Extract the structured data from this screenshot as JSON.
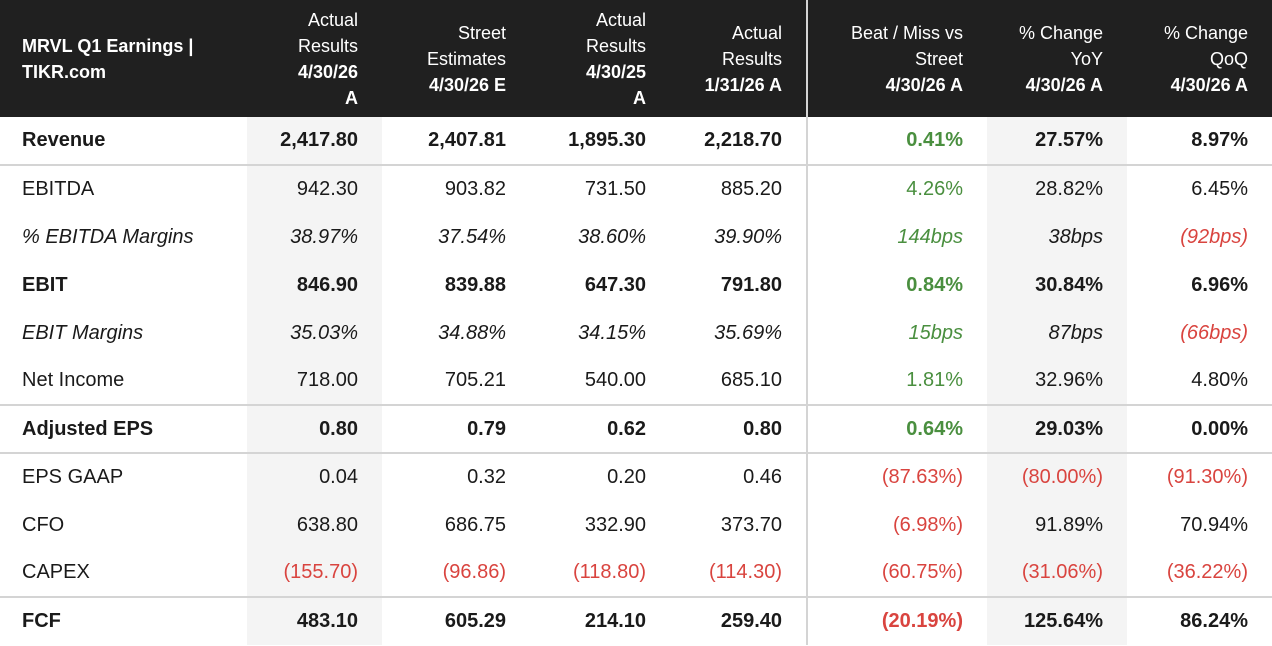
{
  "chart_data": {
    "type": "table",
    "title": "MRVL Q1 Earnings | TIKR.com",
    "columns": [
      {
        "line1": "Actual",
        "line2": "Results",
        "bold": "4/30/26\nA"
      },
      {
        "line1": "Street",
        "line2": "Estimates",
        "bold": "4/30/26 E"
      },
      {
        "line1": "Actual",
        "line2": "Results",
        "bold": "4/30/25\nA"
      },
      {
        "line1": "Actual",
        "line2": "Results",
        "bold": "1/31/26 A"
      },
      {
        "line1": "Beat / Miss vs",
        "line2": "Street",
        "bold": "4/30/26 A"
      },
      {
        "line1": "% Change",
        "line2": "YoY",
        "bold": "4/30/26 A"
      },
      {
        "line1": "% Change",
        "line2": "QoQ",
        "bold": "4/30/26 A"
      }
    ],
    "rows": [
      {
        "label": "Revenue",
        "style": "bold",
        "cells": [
          "2,417.80",
          "2,407.81",
          "1,895.30",
          "2,218.70",
          "0.41%",
          "27.57%",
          "8.97%"
        ],
        "colors": [
          "",
          "",
          "",
          "",
          "green",
          "",
          ""
        ]
      },
      {
        "label": "EBITDA",
        "style": "normal",
        "cells": [
          "942.30",
          "903.82",
          "731.50",
          "885.20",
          "4.26%",
          "28.82%",
          "6.45%"
        ],
        "colors": [
          "",
          "",
          "",
          "",
          "green",
          "",
          ""
        ]
      },
      {
        "label": "% EBITDA Margins",
        "style": "italic",
        "cells": [
          "38.97%",
          "37.54%",
          "38.60%",
          "39.90%",
          "144bps",
          "38bps",
          "(92bps)"
        ],
        "colors": [
          "",
          "",
          "",
          "",
          "green",
          "",
          "red"
        ]
      },
      {
        "label": "EBIT",
        "style": "bold",
        "cells": [
          "846.90",
          "839.88",
          "647.30",
          "791.80",
          "0.84%",
          "30.84%",
          "6.96%"
        ],
        "colors": [
          "",
          "",
          "",
          "",
          "green",
          "",
          ""
        ]
      },
      {
        "label": "EBIT Margins",
        "style": "italic",
        "cells": [
          "35.03%",
          "34.88%",
          "34.15%",
          "35.69%",
          "15bps",
          "87bps",
          "(66bps)"
        ],
        "colors": [
          "",
          "",
          "",
          "",
          "green",
          "",
          "red"
        ]
      },
      {
        "label": "Net Income",
        "style": "normal",
        "cells": [
          "718.00",
          "705.21",
          "540.00",
          "685.10",
          "1.81%",
          "32.96%",
          "4.80%"
        ],
        "colors": [
          "",
          "",
          "",
          "",
          "green",
          "",
          ""
        ]
      },
      {
        "label": "Adjusted EPS",
        "style": "bold",
        "cells": [
          "0.80",
          "0.79",
          "0.62",
          "0.80",
          "0.64%",
          "29.03%",
          "0.00%"
        ],
        "colors": [
          "",
          "",
          "",
          "",
          "green",
          "",
          ""
        ]
      },
      {
        "label": "EPS GAAP",
        "style": "normal",
        "cells": [
          "0.04",
          "0.32",
          "0.20",
          "0.46",
          "(87.63%)",
          "(80.00%)",
          "(91.30%)"
        ],
        "colors": [
          "",
          "",
          "",
          "",
          "red",
          "red",
          "red"
        ]
      },
      {
        "label": "CFO",
        "style": "normal",
        "cells": [
          "638.80",
          "686.75",
          "332.90",
          "373.70",
          "(6.98%)",
          "91.89%",
          "70.94%"
        ],
        "colors": [
          "",
          "",
          "",
          "",
          "red",
          "",
          ""
        ]
      },
      {
        "label": "CAPEX",
        "style": "normal",
        "cells": [
          "(155.70)",
          "(96.86)",
          "(118.80)",
          "(114.30)",
          "(60.75%)",
          "(31.06%)",
          "(36.22%)"
        ],
        "colors": [
          "red",
          "red",
          "red",
          "red",
          "red",
          "red",
          "red"
        ]
      },
      {
        "label": "FCF",
        "style": "bold",
        "cells": [
          "483.10",
          "605.29",
          "214.10",
          "259.40",
          "(20.19%)",
          "125.64%",
          "86.24%"
        ],
        "colors": [
          "",
          "",
          "",
          "",
          "red",
          "",
          ""
        ]
      }
    ]
  },
  "colors": {
    "header_bg": "#202020",
    "green": "#4a8f3f",
    "red": "#d9443f",
    "shade": "#f4f4f4"
  }
}
